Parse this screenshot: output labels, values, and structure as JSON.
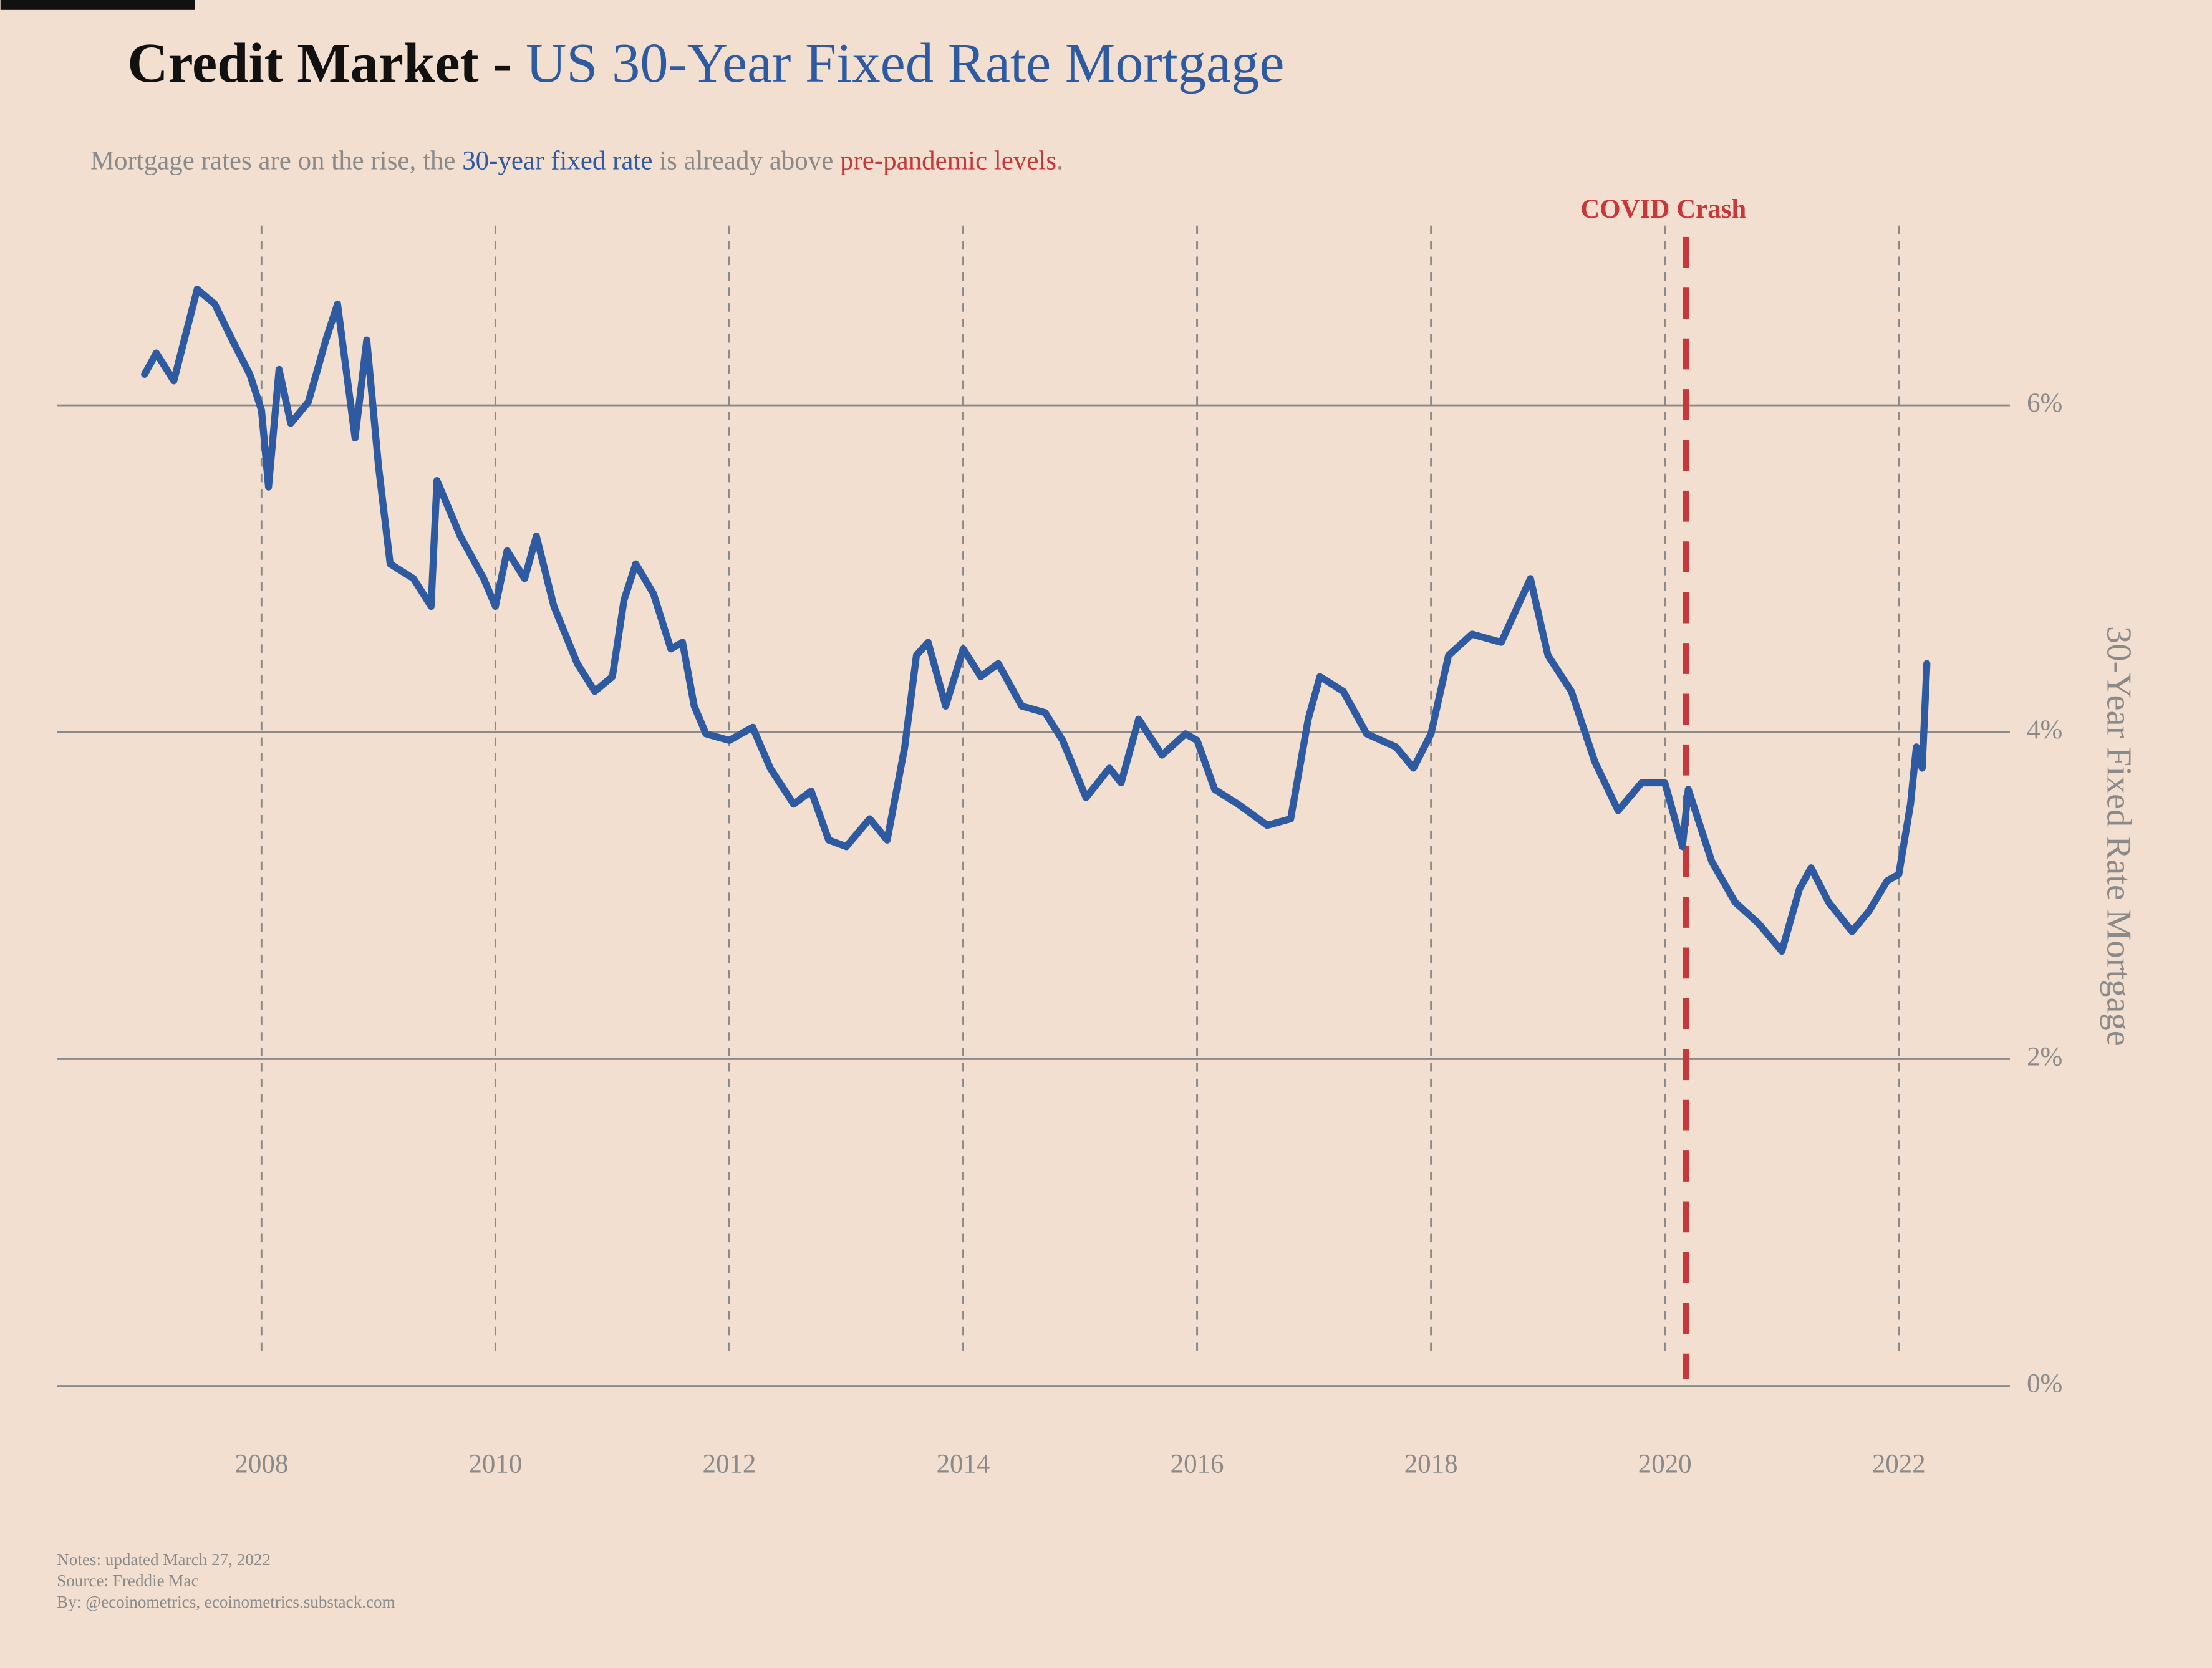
{
  "chart_data": {
    "type": "line",
    "title_parts": [
      {
        "text": "Credit Market",
        "color": "#111111"
      },
      {
        "text": " - ",
        "color": "#111111"
      },
      {
        "text": "US 30-Year Fixed Rate Mortgage",
        "color": "#2d5aa0"
      }
    ],
    "subtitle_parts": [
      {
        "text": "Mortgage rates are on the rise, the ",
        "color": "#8a8a8a"
      },
      {
        "text": "30-year fixed rate",
        "color": "#2d5aa0"
      },
      {
        "text": " is already above ",
        "color": "#8a8a8a"
      },
      {
        "text": "pre-pandemic levels",
        "color": "#c8373a"
      },
      {
        "text": ".",
        "color": "#8a8a8a"
      }
    ],
    "y_label": "30-Year Fixed Rate Mortgage",
    "notes": [
      "Notes: updated March 27, 2022",
      "Source: Freddie Mac",
      "By: @ecoinometrics, ecoinometrics.substack.com"
    ],
    "x": [
      2007.0,
      2007.1,
      2007.25,
      2007.45,
      2007.6,
      2007.75,
      2007.9,
      2008.0,
      2008.06,
      2008.15,
      2008.25,
      2008.4,
      2008.55,
      2008.65,
      2008.8,
      2008.9,
      2009.0,
      2009.1,
      2009.3,
      2009.45,
      2009.5,
      2009.7,
      2009.9,
      2010.0,
      2010.1,
      2010.25,
      2010.35,
      2010.5,
      2010.7,
      2010.85,
      2011.0,
      2011.1,
      2011.2,
      2011.35,
      2011.5,
      2011.6,
      2011.7,
      2011.8,
      2012.0,
      2012.2,
      2012.35,
      2012.55,
      2012.7,
      2012.85,
      2013.0,
      2013.2,
      2013.35,
      2013.5,
      2013.6,
      2013.7,
      2013.85,
      2014.0,
      2014.15,
      2014.3,
      2014.5,
      2014.7,
      2014.85,
      2015.05,
      2015.25,
      2015.35,
      2015.5,
      2015.7,
      2015.9,
      2016.0,
      2016.15,
      2016.35,
      2016.6,
      2016.8,
      2016.95,
      2017.05,
      2017.25,
      2017.45,
      2017.7,
      2017.85,
      2018.0,
      2018.15,
      2018.35,
      2018.6,
      2018.85,
      2019.0,
      2019.2,
      2019.4,
      2019.6,
      2019.8,
      2020.0,
      2020.15,
      2020.2,
      2020.4,
      2020.6,
      2020.8,
      2021.0,
      2021.15,
      2021.25,
      2021.4,
      2021.6,
      2021.75,
      2021.9,
      2022.0,
      2022.1,
      2022.15,
      2022.2,
      2022.24
    ],
    "series": [
      {
        "color": "#2d5aa0",
        "values": [
          6.19,
          6.32,
          6.15,
          6.71,
          6.62,
          6.4,
          6.19,
          5.97,
          5.5,
          6.22,
          5.89,
          6.02,
          6.4,
          6.62,
          5.8,
          6.4,
          5.63,
          5.03,
          4.94,
          4.77,
          5.54,
          5.2,
          4.94,
          4.77,
          5.11,
          4.94,
          5.2,
          4.77,
          4.42,
          4.25,
          4.34,
          4.81,
          5.03,
          4.85,
          4.51,
          4.55,
          4.16,
          3.99,
          3.95,
          4.03,
          3.78,
          3.56,
          3.64,
          3.34,
          3.3,
          3.47,
          3.34,
          3.91,
          4.47,
          4.55,
          4.16,
          4.51,
          4.34,
          4.42,
          4.16,
          4.12,
          3.95,
          3.6,
          3.78,
          3.69,
          4.08,
          3.86,
          3.99,
          3.95,
          3.65,
          3.56,
          3.43,
          3.47,
          4.08,
          4.34,
          4.25,
          3.99,
          3.91,
          3.78,
          3.99,
          4.47,
          4.6,
          4.55,
          4.94,
          4.47,
          4.25,
          3.82,
          3.52,
          3.69,
          3.69,
          3.3,
          3.65,
          3.21,
          2.96,
          2.83,
          2.66,
          3.04,
          3.17,
          2.96,
          2.78,
          2.91,
          3.09,
          3.13,
          3.56,
          3.91,
          3.78,
          4.42
        ]
      }
    ],
    "events": [
      {
        "x": 2020.18,
        "label": "COVID Crash",
        "color": "#c8373a"
      }
    ],
    "xlim": [
      2006.25,
      2022.95
    ],
    "xticks": [
      2008,
      2010,
      2012,
      2014,
      2016,
      2018,
      2020,
      2022
    ],
    "ylim": [
      -0.32,
      7.1
    ],
    "yticks": [
      {
        "value": 0,
        "label": "0%"
      },
      {
        "value": 2,
        "label": "2%"
      },
      {
        "value": 4,
        "label": "4%"
      },
      {
        "value": 6,
        "label": "6%"
      }
    ],
    "grid": true
  }
}
